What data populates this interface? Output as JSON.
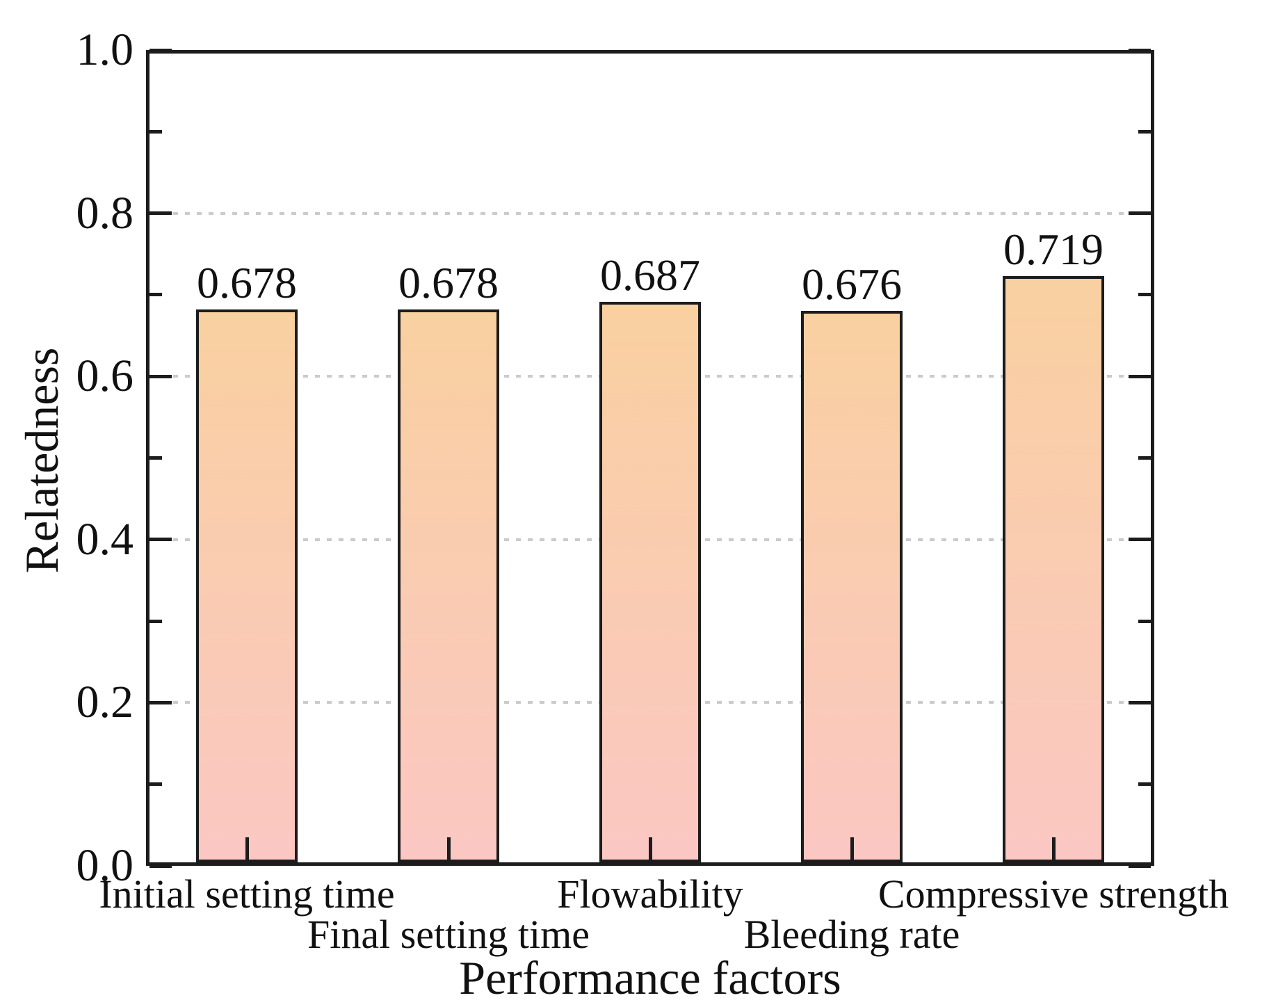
{
  "chart_data": {
    "type": "bar",
    "categories": [
      "Initial setting time",
      "Final setting time",
      "Flowability",
      "Bleeding rate",
      "Compressive strength"
    ],
    "values": [
      0.678,
      0.678,
      0.687,
      0.676,
      0.719
    ],
    "value_labels": [
      "0.678",
      "0.678",
      "0.687",
      "0.676",
      "0.719"
    ],
    "xlabel": "Performance factors",
    "ylabel": "Relatedness",
    "ylim": [
      0.0,
      1.0
    ],
    "yticks": [
      0.0,
      0.2,
      0.4,
      0.6,
      0.8,
      1.0
    ],
    "ytick_labels": [
      "0.0",
      "0.2",
      "0.4",
      "0.6",
      "0.8",
      "1.0"
    ],
    "minor_yticks": [
      0.1,
      0.3,
      0.5,
      0.7,
      0.9
    ],
    "grid": "horizontal dotted at major ticks, behind bars",
    "legend": "none",
    "category_label_rows": [
      0,
      1,
      0,
      1,
      0
    ],
    "colors": {
      "bar_gradient_top": "#f9d0a0",
      "bar_gradient_bottom": "#fbc7c3",
      "bar_border": "#1c1c1c",
      "axis": "#1c1c1c",
      "gridline": "#cbcbcb",
      "text": "#111111",
      "background": "#ffffff"
    }
  }
}
